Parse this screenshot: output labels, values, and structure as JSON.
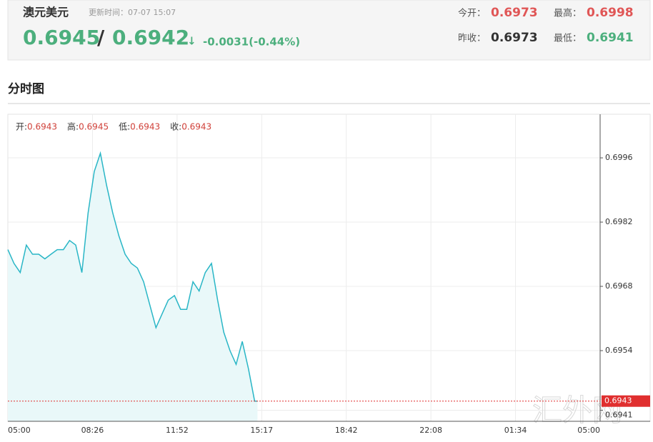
{
  "header": {
    "title": "澳元美元",
    "update_time": "更新时间：07-07 15:07",
    "bid": "0.6945",
    "separator": "/",
    "ask": "0.6942",
    "arrow": "↓",
    "change": "-0.0031(-0.44%)",
    "price_color": "#4caf7d",
    "stats": [
      {
        "label": "今开：",
        "value": "0.6973",
        "color": "#e05656"
      },
      {
        "label": "最高：",
        "value": "0.6998",
        "color": "#e05656"
      },
      {
        "label": "昨收：",
        "value": "0.6973",
        "color": "#333333"
      },
      {
        "label": "最低：",
        "value": "0.6941",
        "color": "#4caf7d"
      }
    ]
  },
  "section_title": "分时图",
  "chart_data": {
    "type": "area",
    "ohlc": [
      {
        "label": "开:",
        "value": "0.6943"
      },
      {
        "label": "高:",
        "value": "0.6945"
      },
      {
        "label": "低:",
        "value": "0.6943"
      },
      {
        "label": "收:",
        "value": "0.6943"
      }
    ],
    "x": [
      "05:00",
      "05:15",
      "05:30",
      "05:45",
      "06:00",
      "06:15",
      "06:30",
      "06:45",
      "07:00",
      "07:15",
      "07:30",
      "07:45",
      "08:00",
      "08:15",
      "08:30",
      "08:45",
      "09:00",
      "09:15",
      "09:30",
      "09:45",
      "10:00",
      "10:15",
      "10:30",
      "10:45",
      "11:00",
      "11:15",
      "11:30",
      "11:45",
      "12:00",
      "12:15",
      "12:30",
      "12:45",
      "13:00",
      "13:15",
      "13:30",
      "13:45",
      "14:00",
      "14:15",
      "14:30",
      "14:45",
      "15:00",
      "15:07"
    ],
    "values": [
      0.6976,
      0.6973,
      0.6971,
      0.6977,
      0.6975,
      0.6975,
      0.6974,
      0.6975,
      0.6976,
      0.6976,
      0.6978,
      0.6977,
      0.6971,
      0.6984,
      0.6993,
      0.6997,
      0.699,
      0.6984,
      0.6979,
      0.6975,
      0.6973,
      0.6972,
      0.6969,
      0.6964,
      0.6959,
      0.6962,
      0.6965,
      0.6966,
      0.6963,
      0.6963,
      0.6969,
      0.6967,
      0.6971,
      0.6973,
      0.6965,
      0.6958,
      0.6954,
      0.6951,
      0.6956,
      0.695,
      0.6943,
      0.6943
    ],
    "color": "#29b6c6",
    "fill": "#e9f8f9",
    "current": 0.6943,
    "current_color": "#e02f2f",
    "ylim": [
      0.69386,
      0.70055
    ],
    "yticks": [
      0.6941,
      0.6954,
      0.6968,
      0.6982,
      0.6996
    ],
    "xticks": [
      "05:00",
      "08:26",
      "11:52",
      "15:17",
      "18:42",
      "22:08",
      "01:34",
      "05:00"
    ],
    "grid": true,
    "watermark": "汇外网"
  }
}
